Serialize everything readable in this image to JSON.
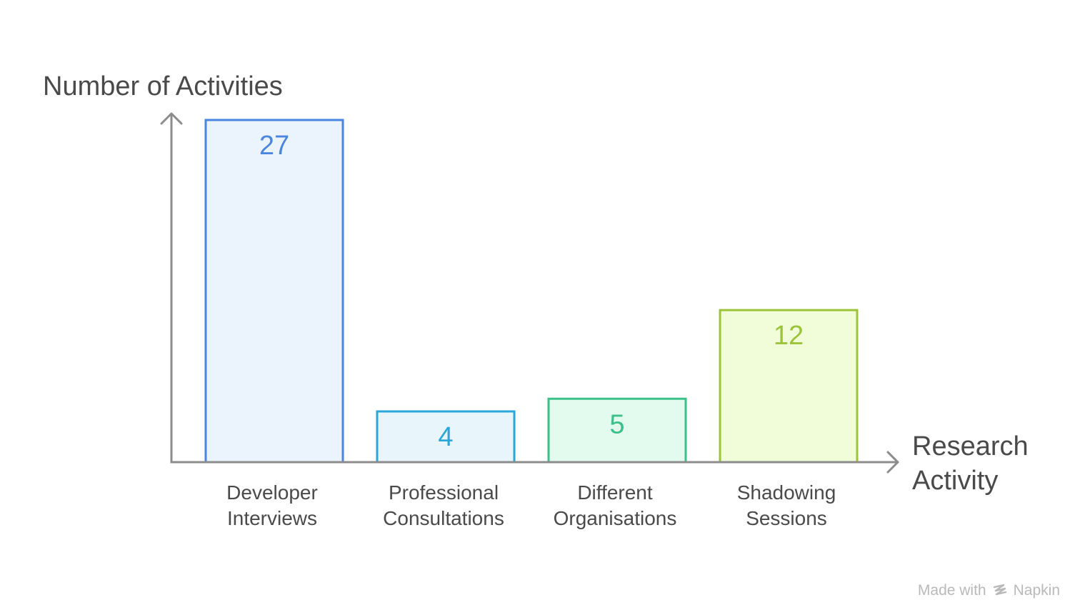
{
  "chart_data": {
    "type": "bar",
    "title": "",
    "ylabel": "Number of Activities",
    "xlabel": [
      "Research",
      "Activity"
    ],
    "ylim": [
      0,
      27
    ],
    "grid": false,
    "categories": [
      [
        "Developer",
        "Interviews"
      ],
      [
        "Professional",
        "Consultations"
      ],
      [
        "Different",
        "Organisations"
      ],
      [
        "Shadowing",
        "Sessions"
      ]
    ],
    "values": [
      27,
      4,
      5,
      12
    ],
    "data_labels": [
      "27",
      "4",
      "5",
      "12"
    ],
    "bar_colors": [
      {
        "stroke": "#4a86e0",
        "fill": "#ebf3fd"
      },
      {
        "stroke": "#2aa6d8",
        "fill": "#e8f5fb"
      },
      {
        "stroke": "#3cc08a",
        "fill": "#e3fbee"
      },
      {
        "stroke": "#9cc43a",
        "fill": "#f1fdd8"
      }
    ],
    "axis_color": "#8c8c8c",
    "text_color": "#4a4a4a"
  },
  "watermark": {
    "made_with": "Made with",
    "brand": "Napkin"
  }
}
